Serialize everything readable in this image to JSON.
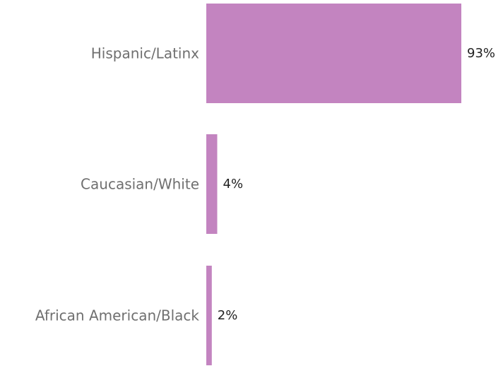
{
  "chart_data": {
    "type": "bar",
    "orientation": "horizontal",
    "categories": [
      "Hispanic/Latinx",
      "Caucasian/White",
      "African American/Black"
    ],
    "values": [
      93,
      4,
      2
    ],
    "value_labels": [
      "93%",
      "4%",
      "2%"
    ],
    "unit": "%",
    "title": "",
    "xlabel": "",
    "ylabel": "",
    "xlim": [
      0,
      93
    ],
    "grid": false,
    "legend": "none",
    "bar_color": "#c384c0"
  }
}
